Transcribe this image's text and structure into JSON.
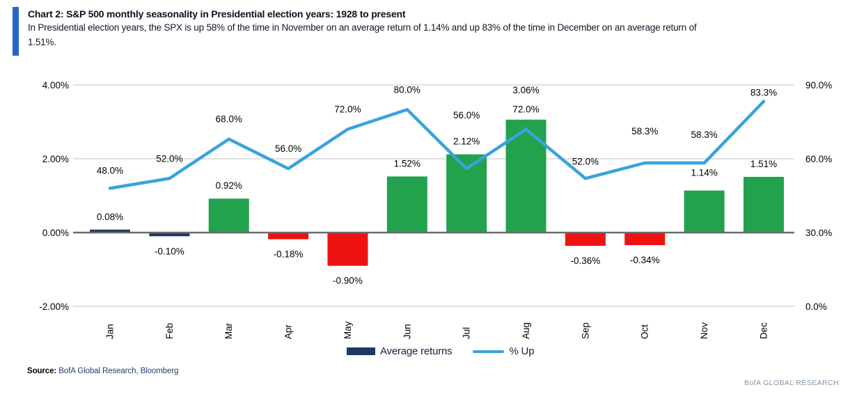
{
  "header": {
    "title": "Chart 2: S&P 500 monthly seasonality in Presidential election years: 1928 to present",
    "subtitle_lines": [
      "In Presidential election years, the SPX is up 58% of the time in November on an average return of 1.14% and up 83% of the time in December on an average return of",
      "1.51%."
    ],
    "accent_color": "#2565c6"
  },
  "chart_data": {
    "type": "bar",
    "subtype": "combo-bar-line",
    "categories": [
      "Jan",
      "Feb",
      "Mar",
      "Apr",
      "May",
      "Jun",
      "Jul",
      "Aug",
      "Sep",
      "Oct",
      "Nov",
      "Dec"
    ],
    "series": [
      {
        "name": "Average returns",
        "type": "bar",
        "axis": "left",
        "values": [
          0.08,
          -0.1,
          0.92,
          -0.18,
          -0.9,
          1.52,
          2.12,
          3.06,
          -0.36,
          -0.34,
          1.14,
          1.51
        ],
        "labels": [
          "0.08%",
          "-0.10%",
          "0.92%",
          "-0.18%",
          "-0.90%",
          "1.52%",
          "2.12%",
          "3.06%",
          "-0.36%",
          "-0.34%",
          "1.14%",
          "1.51%"
        ],
        "bar_colors": [
          "#1f3864",
          "#1f3864",
          "#23a24d",
          "#ef1212",
          "#ef1212",
          "#23a24d",
          "#23a24d",
          "#23a24d",
          "#ef1212",
          "#ef1212",
          "#23a24d",
          "#23a24d"
        ]
      },
      {
        "name": "% Up",
        "type": "line",
        "axis": "right",
        "values": [
          48.0,
          52.0,
          68.0,
          56.0,
          72.0,
          80.0,
          56.0,
          72.0,
          52.0,
          58.3,
          58.3,
          83.3
        ],
        "labels": [
          "48.0%",
          "52.0%",
          "68.0%",
          "56.0%",
          "72.0%",
          "80.0%",
          "56.0%",
          "72.0%",
          "52.0%",
          "58.3%",
          "58.3%",
          "83.3%"
        ],
        "color": "#3aa2dc"
      }
    ],
    "left_axis": {
      "tick_labels": [
        "4.00%",
        "2.00%",
        "0.00%",
        "-2.00%"
      ],
      "tick_values": [
        4,
        2,
        0,
        -2
      ],
      "range": [
        -2,
        4
      ]
    },
    "right_axis": {
      "tick_labels": [
        "90.0%",
        "60.0%",
        "30.0%",
        "0.0%"
      ],
      "tick_values": [
        90,
        60,
        30,
        0
      ],
      "range": [
        0,
        90
      ]
    },
    "grid": "horizontal",
    "legend_position": "bottom-center",
    "legend": [
      {
        "label": "Average returns",
        "swatch": "bar",
        "color": "#1f3864"
      },
      {
        "label": "% Up",
        "swatch": "line",
        "color": "#3aa2dc"
      }
    ],
    "colors": {
      "grid": "#d7d7d7",
      "zero_line": "#6b6b6b",
      "label_text": "#000000"
    }
  },
  "footer": {
    "source_label": "Source:",
    "source_text": "BofA Global Research, Bloomberg",
    "watermark": "BofA GLOBAL RESEARCH"
  }
}
